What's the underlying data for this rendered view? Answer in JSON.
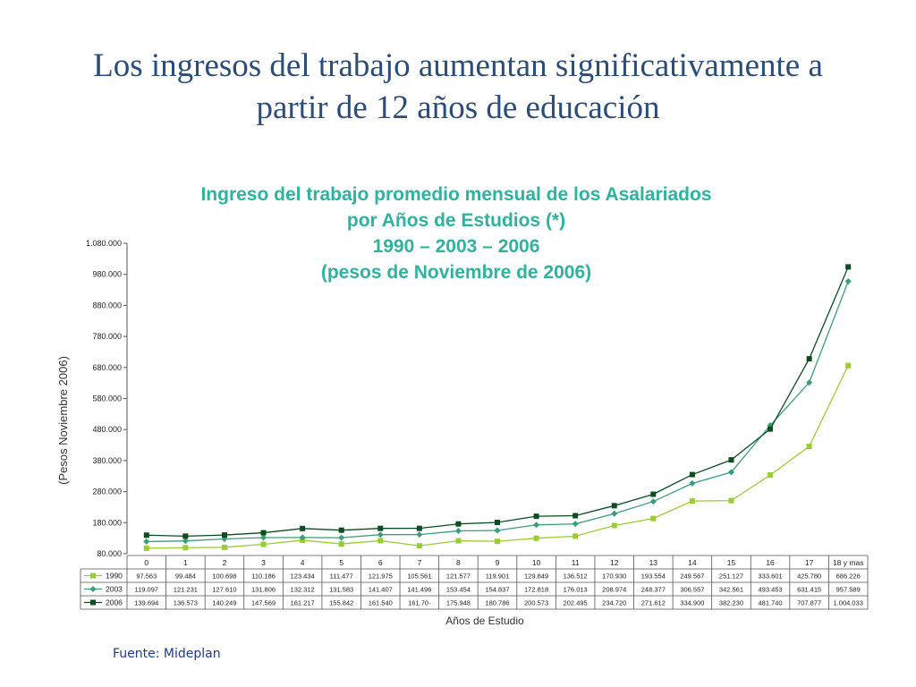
{
  "slide": {
    "title": "Los ingresos del trabajo aumentan significativamente a partir de 12 años de educación",
    "source": "Fuente: Mideplan"
  },
  "chart_data": {
    "type": "line",
    "title_lines": [
      "Ingreso del trabajo promedio mensual de los Asalariados",
      "por Años de Estudios (*)",
      "1990 – 2003 – 2006",
      "(pesos de Noviembre de 2006)"
    ],
    "xlabel": "Años de Estudio",
    "ylabel": "(Pesos Noviembre 2006)",
    "categories": [
      "0",
      "1",
      "2",
      "3",
      "4",
      "5",
      "6",
      "7",
      "8",
      "9",
      "10",
      "11",
      "12",
      "13",
      "14",
      "15",
      "16",
      "17",
      "18 y mas"
    ],
    "ylim": [
      80000,
      1080000
    ],
    "yticks": [
      80000,
      180000,
      280000,
      380000,
      480000,
      580000,
      680000,
      780000,
      880000,
      980000,
      1080000
    ],
    "ytick_labels": [
      "80.000",
      "180.000",
      "280.000",
      "380.000",
      "480.000",
      "580.000",
      "680.000",
      "780.000",
      "880.000",
      "980.000",
      "1.080.000"
    ],
    "series": [
      {
        "name": "1990",
        "color": "#9acd32",
        "marker": "square",
        "values": [
          97563,
          99484,
          100698,
          110186,
          123434,
          111477,
          121975,
          105561,
          121577,
          119901,
          129849,
          136512,
          170930,
          193554,
          249567,
          251127,
          333601,
          425780,
          686226
        ],
        "labels": [
          "97.563",
          "99.484",
          "100.698",
          "110.186",
          "123.434",
          "111.477",
          "121.975",
          "105.561",
          "121.577",
          "119.901",
          "129.849",
          "136.512",
          "170.930",
          "193.554",
          "249.567",
          "251.127",
          "333.601",
          "425.780",
          "686.226"
        ]
      },
      {
        "name": "2003",
        "color": "#3a9e7a",
        "marker": "diamond",
        "values": [
          119097,
          121231,
          127610,
          131806,
          132312,
          131583,
          141407,
          141496,
          153454,
          154837,
          172818,
          176013,
          208974,
          248377,
          306557,
          342561,
          493453,
          631415,
          957589
        ],
        "labels": [
          "119.097",
          "121.231",
          "127.610",
          "131.806",
          "132.312",
          "131.583",
          "141.407",
          "141.496",
          "153.454",
          "154.837",
          "172.818",
          "176.013",
          "208.974",
          "248.377",
          "306.557",
          "342.561",
          "493.453",
          "631.415",
          "957.589"
        ]
      },
      {
        "name": "2006",
        "color": "#0b4d1e",
        "marker": "square",
        "values": [
          139694,
          136573,
          140249,
          147569,
          161217,
          155842,
          161540,
          161701,
          175948,
          180786,
          200573,
          202495,
          234720,
          271612,
          334900,
          382230,
          481740,
          707877,
          1004033
        ],
        "labels": [
          "139.694",
          "136.573",
          "140.249",
          "147.569",
          "161.217",
          "155.842",
          "161.540",
          "161.70·",
          "175.948",
          "180.786",
          "200.573",
          "202.495",
          "234.720",
          "271.612",
          "334.900",
          "382.230",
          "481.740",
          "707.877",
          "1.004.033"
        ]
      }
    ],
    "grid": false,
    "legend": "table-below"
  }
}
